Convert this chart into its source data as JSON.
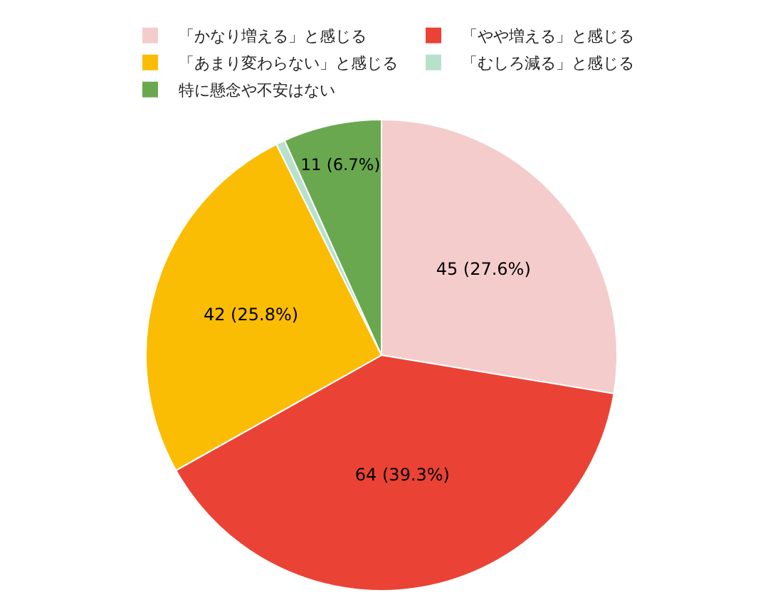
{
  "chart_data": {
    "type": "pie",
    "categories": [
      "「かなり増える」と感じる",
      "「やや増える」と感じる",
      "「あまり変わらない」と感じる",
      "「むしろ減る」と感じる",
      "特に懸念や不安はない"
    ],
    "values": [
      45,
      64,
      42,
      1,
      11
    ],
    "colors": [
      "#f4cccc",
      "#ea4335",
      "#fbbc04",
      "#b7e1cd",
      "#6aa84f"
    ],
    "value_labels": [
      "45 (27.6%)",
      "64 (39.3%)",
      "42 (25.8%)",
      null,
      "11 (6.7%)"
    ],
    "legend": "top"
  }
}
